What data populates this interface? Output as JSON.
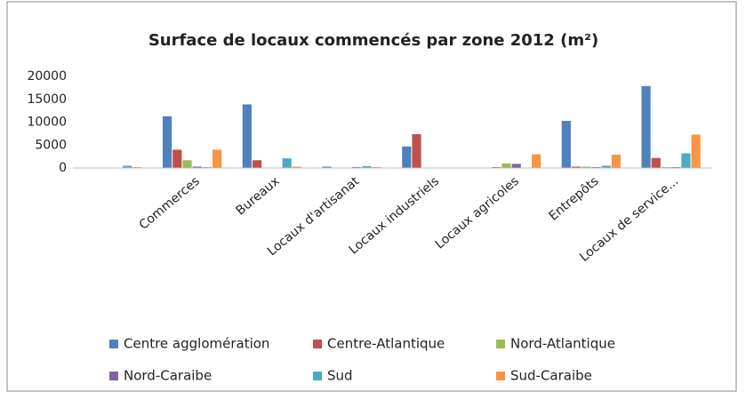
{
  "chart_data": {
    "type": "bar",
    "title": "Surface de locaux commencés par zone 2012 (m²)",
    "categories": [
      null,
      "Commerces",
      "Bureaux",
      "Locaux d'artisanat",
      "Locaux industriels",
      "Locaux agricoles",
      "Entrepôts",
      "Locaux de service..."
    ],
    "series": [
      {
        "name": "Centre agglomération",
        "color": "#4f81bd",
        "values": [
          0,
          11300,
          13900,
          300,
          4700,
          0,
          10300,
          17900
        ]
      },
      {
        "name": "Centre-Atlantique",
        "color": "#c0504d",
        "values": [
          0,
          4000,
          1700,
          0,
          7400,
          200,
          300,
          2200
        ]
      },
      {
        "name": "Nord-Atlantique",
        "color": "#9bbb59",
        "values": [
          0,
          1700,
          100,
          100,
          0,
          1000,
          300,
          200
        ]
      },
      {
        "name": "Nord-Caraibe",
        "color": "#8064a2",
        "values": [
          0,
          300,
          0,
          200,
          0,
          900,
          200,
          200
        ]
      },
      {
        "name": "Sud",
        "color": "#4bacc6",
        "values": [
          500,
          200,
          2100,
          400,
          0,
          100,
          500,
          3200
        ]
      },
      {
        "name": "Sud-Caraibe",
        "color": "#f79646",
        "values": [
          200,
          4000,
          300,
          200,
          0,
          3000,
          2900,
          7300
        ]
      }
    ],
    "ylim": [
      0,
      20000
    ],
    "yticks": [
      0,
      5000,
      10000,
      15000,
      20000
    ],
    "grid": false
  }
}
